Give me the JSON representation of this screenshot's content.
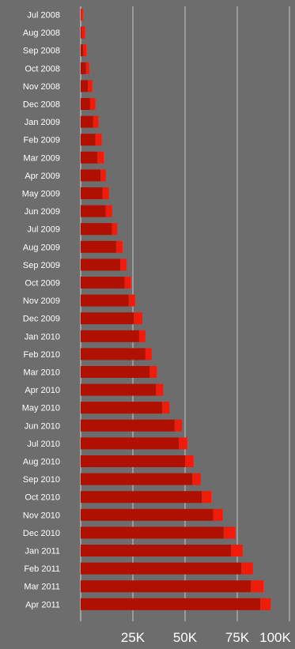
{
  "chart_data": {
    "type": "bar",
    "orientation": "horizontal",
    "stacked": true,
    "categories": [
      "Jul 2008",
      "Aug 2008",
      "Sep 2008",
      "Oct 2008",
      "Nov 2008",
      "Dec 2008",
      "Jan 2009",
      "Feb 2009",
      "Mar 2009",
      "Apr 2009",
      "May 2009",
      "Jun 2009",
      "Jul 2009",
      "Aug 2009",
      "Sep 2009",
      "Oct 2009",
      "Nov 2009",
      "Dec 2009",
      "Jan 2010",
      "Feb 2010",
      "Mar 2010",
      "Apr 2010",
      "May 2010",
      "Jun 2010",
      "Jul 2010",
      "Aug 2010",
      "Sep 2010",
      "Oct 2010",
      "Nov 2010",
      "Dec 2010",
      "Jan 2011",
      "Feb 2011",
      "Mar 2011",
      "Apr 2011"
    ],
    "series": [
      {
        "values": [
          0,
          500,
          1200,
          2500,
          3500,
          4500,
          6000,
          7000,
          8000,
          9500,
          10500,
          12000,
          15000,
          17000,
          19000,
          21000,
          23000,
          25500,
          28000,
          31000,
          33000,
          36000,
          39000,
          45000,
          47000,
          50000,
          53500,
          58000,
          63500,
          68500,
          72000,
          77000,
          81500,
          86000
        ]
      },
      {
        "values": [
          1000,
          1500,
          1500,
          1500,
          2000,
          2500,
          2500,
          3000,
          3000,
          2500,
          3000,
          3000,
          2500,
          3000,
          3000,
          3000,
          3000,
          4000,
          3000,
          3000,
          3500,
          3500,
          3500,
          3500,
          4000,
          4000,
          4000,
          4500,
          4500,
          5500,
          5500,
          5500,
          6000,
          5000
        ]
      }
    ],
    "colors": {
      "bar_main": "#b01000",
      "bar_increment": "#ef1c0b",
      "background": "#6d6d6d",
      "gridline": "#d8d8d8",
      "text": "#ffffff"
    },
    "xlim": [
      0,
      100000
    ],
    "x_ticks": [
      {
        "value": 25000,
        "label": "25K"
      },
      {
        "value": 50000,
        "label": "50K"
      },
      {
        "value": 75000,
        "label": "75K"
      },
      {
        "value": 100000,
        "label": "100K"
      }
    ],
    "grid": true,
    "title": "",
    "xlabel": "",
    "ylabel": ""
  }
}
